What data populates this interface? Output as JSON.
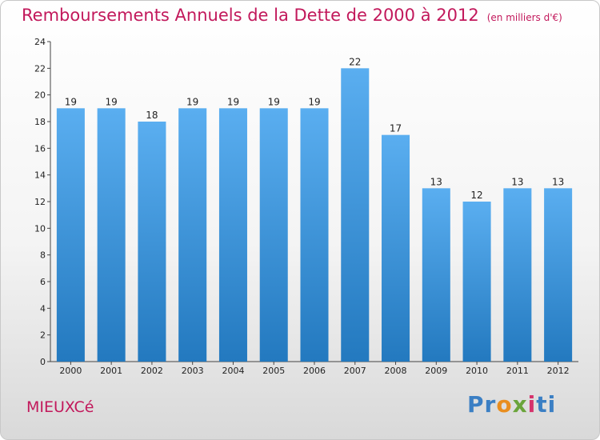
{
  "header": {
    "title": "Remboursements Annuels de la Dette de 2000 à 2012",
    "subtitle": "(en milliers d'€)"
  },
  "footer": {
    "commune": "MIEUXCé",
    "logo": {
      "p1": "Pr",
      "p2": "o",
      "p3": "x",
      "p4": "i",
      "p5": "ti"
    }
  },
  "colors": {
    "title": "#c2185b",
    "bar_top": "#5aaef0",
    "bar_bottom": "#2379bf"
  },
  "chart_data": {
    "type": "bar",
    "categories": [
      "2000",
      "2001",
      "2002",
      "2003",
      "2004",
      "2005",
      "2006",
      "2007",
      "2008",
      "2009",
      "2010",
      "2011",
      "2012"
    ],
    "values": [
      19,
      19,
      18,
      19,
      19,
      19,
      19,
      22,
      17,
      13,
      12,
      13,
      13
    ],
    "ylim": [
      0,
      24
    ],
    "yticks": [
      0,
      2,
      4,
      6,
      8,
      10,
      12,
      14,
      16,
      18,
      20,
      22,
      24
    ],
    "grid": false
  }
}
